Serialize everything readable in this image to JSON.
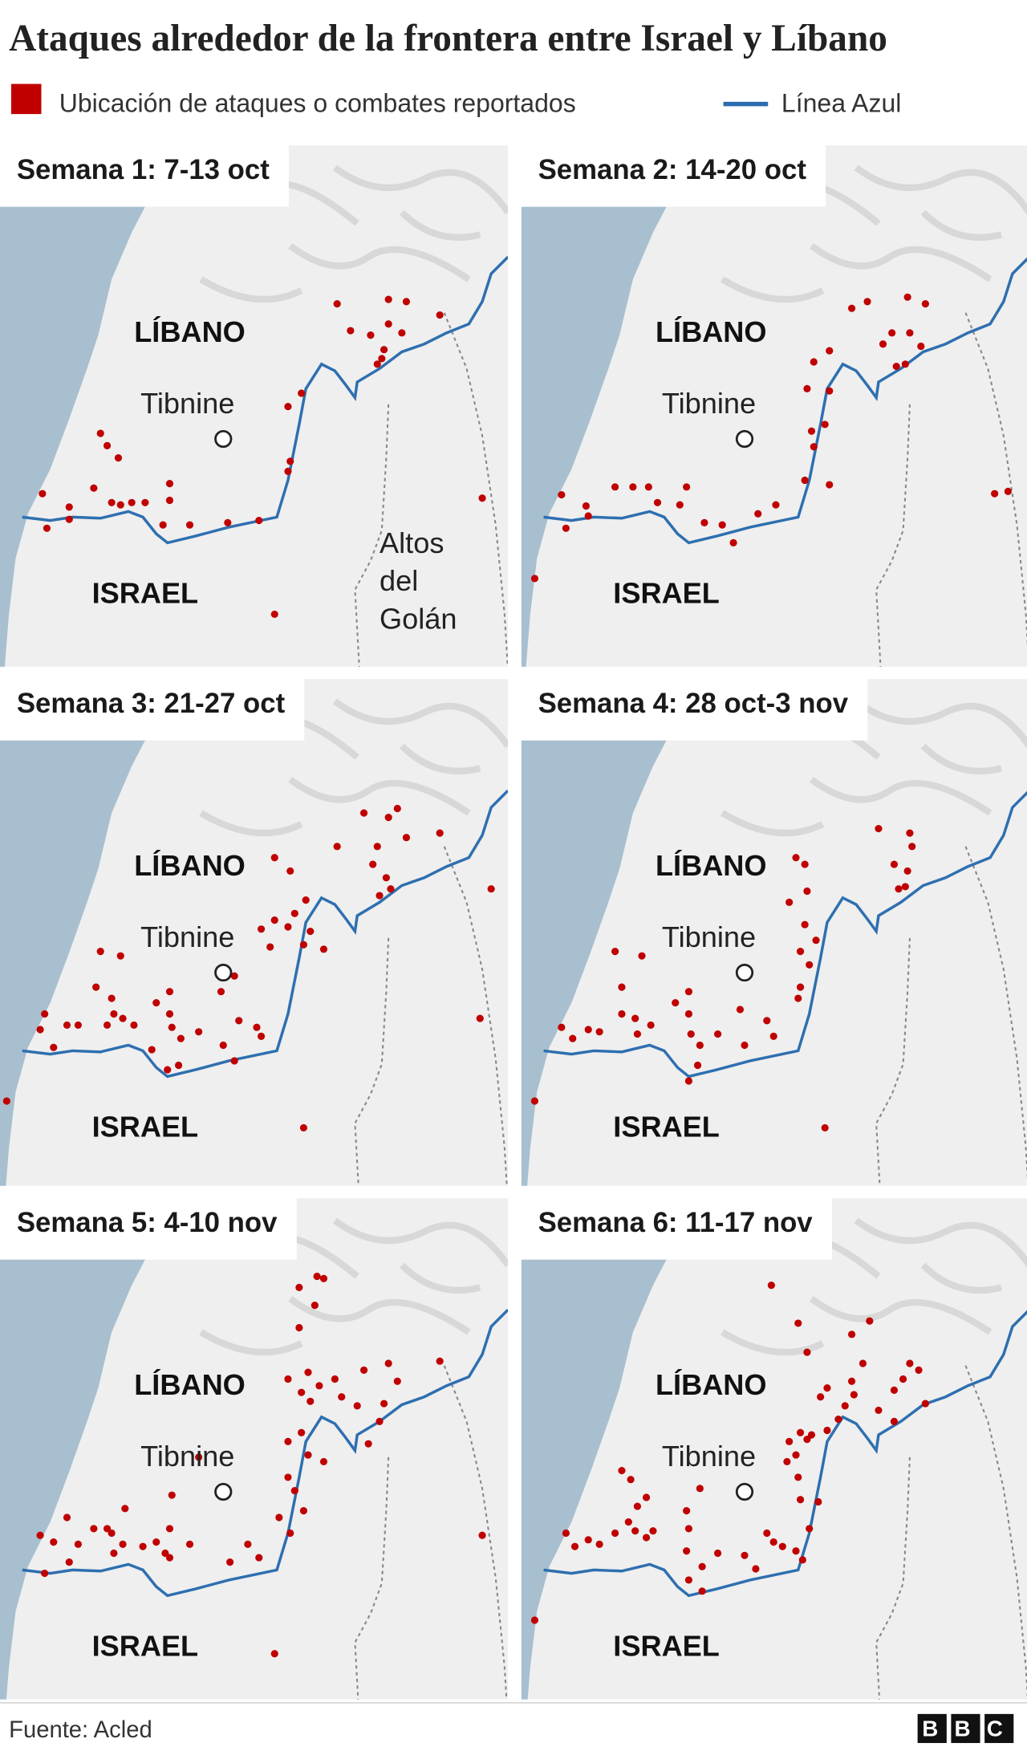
{
  "title": "Ataques alrededor de la frontera entre Israel y Líbano",
  "legend": {
    "attacks": "Ubicación de ataques o combates reportados",
    "blue_line": "Línea Azul"
  },
  "panels": [
    {
      "title": "Semana 1: 7-13 oct",
      "lebanon": "LÍBANO",
      "town": "Tibnine",
      "israel": "ISRAEL"
    },
    {
      "title": "Semana 2: 14-20 oct",
      "lebanon": "LÍBANO",
      "town": "Tibnine",
      "israel": "ISRAEL"
    },
    {
      "title": "Semana 3: 21-27 oct",
      "lebanon": "LÍBANO",
      "town": "Tibnine",
      "israel": "ISRAEL"
    },
    {
      "title": "Semana 4: 28 oct-3 nov",
      "lebanon": "LÍBANO",
      "town": "Tibnine",
      "israel": "ISRAEL"
    },
    {
      "title": "Semana 5: 4-10 nov",
      "lebanon": "LÍBANO",
      "town": "Tibnine",
      "israel": "ISRAEL"
    },
    {
      "title": "Semana 6: 11-17 nov",
      "lebanon": "LÍBANO",
      "town": "Tibnine",
      "israel": "ISRAEL"
    }
  ],
  "golan_label": [
    "Altos",
    "del",
    "Golán"
  ],
  "source": "Fuente: Acled",
  "logo": "BBC"
}
